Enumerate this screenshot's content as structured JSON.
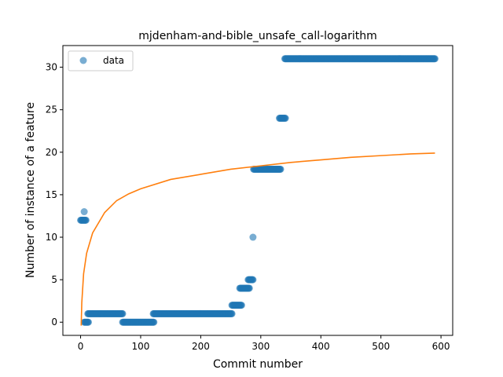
{
  "chart_data": {
    "type": "scatter",
    "title": "mjdenham-and-bible_unsafe_call-logarithm",
    "xlabel": "Commit number",
    "ylabel": "Number of instance of a feature",
    "xlim": [
      -29.5,
      619.5
    ],
    "ylim": [
      -1.55,
      32.55
    ],
    "xticks": [
      0,
      100,
      200,
      300,
      400,
      500,
      600
    ],
    "yticks": [
      0,
      5,
      10,
      15,
      20,
      25,
      30
    ],
    "legend": {
      "placement": "upper-left",
      "entries": [
        "data"
      ]
    },
    "grid": false,
    "colors": {
      "data": "#1f77b4",
      "fit": "#ff7f0e"
    },
    "series": [
      {
        "name": "data",
        "kind": "points",
        "runs": [
          {
            "x_start": 0,
            "x_end": 9,
            "y": 12
          },
          {
            "x_start": 6,
            "x_end": 6,
            "y": 13
          },
          {
            "x_start": 6,
            "x_end": 13,
            "y": 0
          },
          {
            "x_start": 12,
            "x_end": 70,
            "y": 1
          },
          {
            "x_start": 70,
            "x_end": 122,
            "y": 0
          },
          {
            "x_start": 121,
            "x_end": 252,
            "y": 1
          },
          {
            "x_start": 252,
            "x_end": 268,
            "y": 2
          },
          {
            "x_start": 265,
            "x_end": 281,
            "y": 4
          },
          {
            "x_start": 279,
            "x_end": 287,
            "y": 5
          },
          {
            "x_start": 287,
            "x_end": 287,
            "y": 10
          },
          {
            "x_start": 288,
            "x_end": 333,
            "y": 18
          },
          {
            "x_start": 331,
            "x_end": 341,
            "y": 24
          },
          {
            "x_start": 340,
            "x_end": 590,
            "y": 31
          }
        ]
      },
      {
        "name": "fit",
        "kind": "line",
        "model": "logarithm",
        "x_range": [
          1,
          590
        ],
        "points": [
          [
            1,
            -0.4
          ],
          [
            2,
            2.3
          ],
          [
            5,
            5.7
          ],
          [
            10,
            8.1
          ],
          [
            20,
            10.5
          ],
          [
            40,
            12.9
          ],
          [
            60,
            14.3
          ],
          [
            80,
            15.1
          ],
          [
            100,
            15.7
          ],
          [
            150,
            16.8
          ],
          [
            200,
            17.4
          ],
          [
            250,
            18.0
          ],
          [
            300,
            18.4
          ],
          [
            350,
            18.8
          ],
          [
            400,
            19.1
          ],
          [
            450,
            19.4
          ],
          [
            500,
            19.6
          ],
          [
            550,
            19.8
          ],
          [
            590,
            19.9
          ]
        ]
      }
    ]
  }
}
